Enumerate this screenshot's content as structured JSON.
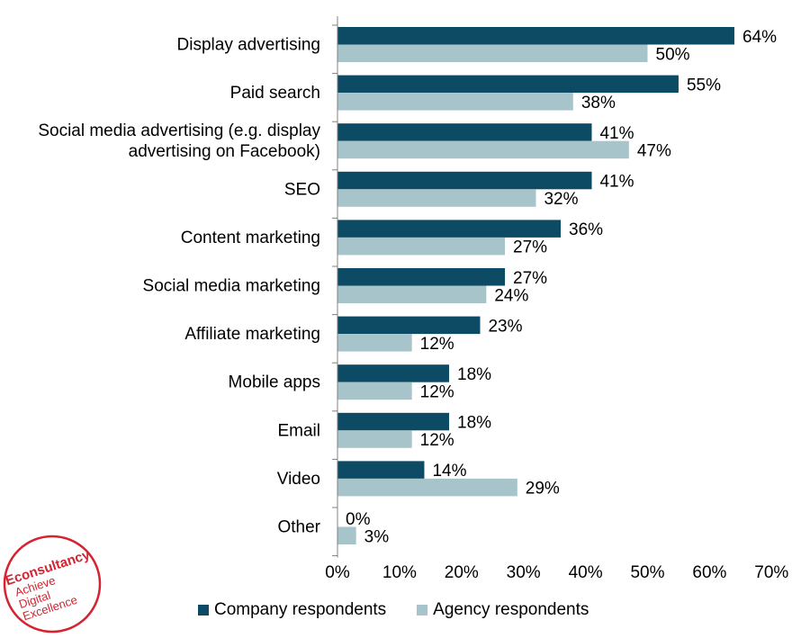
{
  "chart_data": {
    "type": "bar",
    "orientation": "horizontal",
    "categories": [
      [
        "Display advertising"
      ],
      [
        "Paid search"
      ],
      [
        "Social media advertising (e.g. display",
        "advertising on Facebook)"
      ],
      [
        "SEO"
      ],
      [
        "Content marketing"
      ],
      [
        "Social media marketing"
      ],
      [
        "Affiliate marketing"
      ],
      [
        "Mobile apps"
      ],
      [
        "Email"
      ],
      [
        "Video"
      ],
      [
        "Other"
      ]
    ],
    "series": [
      {
        "name": "Company respondents",
        "color": "#0d4a64",
        "values": [
          64,
          55,
          41,
          41,
          36,
          27,
          23,
          18,
          18,
          14,
          0
        ]
      },
      {
        "name": "Agency respondents",
        "color": "#a7c4cb",
        "values": [
          50,
          38,
          47,
          32,
          27,
          24,
          12,
          12,
          12,
          29,
          3
        ]
      }
    ],
    "value_suffix": "%",
    "xlim": [
      0,
      70
    ],
    "ticks": [
      "0%",
      "10%",
      "20%",
      "30%",
      "40%",
      "50%",
      "60%",
      "70%"
    ],
    "grid": false,
    "legend_position": "bottom"
  },
  "logo": {
    "lines": [
      "Econsultancy",
      "Achieve",
      "Digital",
      "Excellence"
    ],
    "color": "#d52330"
  }
}
